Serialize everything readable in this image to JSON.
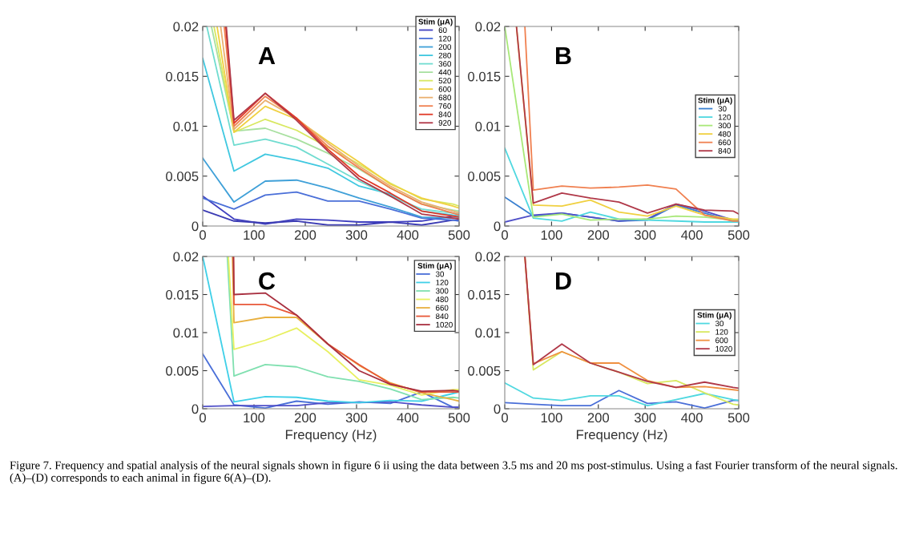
{
  "chart_data": [
    {
      "type": "line",
      "xlim": [
        0,
        500
      ],
      "xticks": [
        0,
        100,
        200,
        300,
        400,
        500
      ],
      "ylim": [
        0,
        0.02
      ],
      "yticks": [
        0,
        0.005,
        0.01,
        0.015,
        0.02
      ],
      "grid": false,
      "legend": "top right",
      "legend_title": "Stim (μA)",
      "annotations": [
        "A"
      ],
      "x": [
        0,
        61,
        122,
        183,
        244,
        305,
        366,
        427,
        488,
        500
      ],
      "series": [
        {
          "name": "60",
          "color": "#4040c0",
          "values": [
            0.003,
            0.0007,
            0.0002,
            0.0007,
            0.0006,
            0.0004,
            0.0004,
            0.0005,
            0.001,
            0.001
          ]
        },
        {
          "color": "#3c3cb4",
          "values": [
            0.0016,
            0.0005,
            0.0003,
            0.0005,
            0.0001,
            0.0001,
            0.0004,
            0.0001,
            0.0006,
            0.0006
          ]
        },
        {
          "name": "120",
          "color": "#4a6fd8",
          "values": [
            0.0028,
            0.0017,
            0.0031,
            0.0034,
            0.0025,
            0.0025,
            0.0017,
            0.0008,
            0.0006,
            0.0005
          ]
        },
        {
          "name": "200",
          "color": "#3fa0d8",
          "values": [
            0.0068,
            0.0024,
            0.0045,
            0.0046,
            0.0038,
            0.0028,
            0.0019,
            0.0009,
            0.0008,
            0.0008
          ]
        },
        {
          "name": "280",
          "color": "#40c8e0",
          "values": [
            0.0168,
            0.0055,
            0.0072,
            0.0066,
            0.0058,
            0.004,
            0.0032,
            0.0015,
            0.0011,
            0.001
          ]
        },
        {
          "name": "360",
          "color": "#70dcd0",
          "x": [
            8,
            61,
            122,
            183,
            244,
            305,
            366,
            427,
            488,
            500
          ],
          "values": [
            0.02,
            0.0081,
            0.0087,
            0.0079,
            0.0062,
            0.0045,
            0.003,
            0.0017,
            0.0013,
            0.0012
          ]
        },
        {
          "name": "440",
          "color": "#a8e0a0",
          "x": [
            17,
            61,
            122,
            183,
            244,
            305,
            366,
            427,
            488,
            500
          ],
          "values": [
            0.02,
            0.0095,
            0.0098,
            0.0087,
            0.0073,
            0.0057,
            0.0038,
            0.0022,
            0.0016,
            0.0015
          ]
        },
        {
          "name": "520",
          "color": "#d8e860",
          "x": [
            22,
            61,
            122,
            183,
            244,
            305,
            366,
            427,
            488,
            500
          ],
          "values": [
            0.02,
            0.0094,
            0.0107,
            0.0096,
            0.0079,
            0.0062,
            0.0043,
            0.0027,
            0.0022,
            0.002
          ]
        },
        {
          "name": "600",
          "color": "#f0d040",
          "x": [
            28,
            61,
            122,
            183,
            244,
            305,
            366,
            427,
            488,
            500
          ],
          "values": [
            0.02,
            0.0094,
            0.012,
            0.0107,
            0.0085,
            0.0064,
            0.0042,
            0.0028,
            0.002,
            0.0018
          ]
        },
        {
          "name": "680",
          "color": "#eab070",
          "x": [
            35,
            61,
            122,
            183,
            244,
            305,
            366,
            427,
            488,
            500
          ],
          "values": [
            0.02,
            0.0097,
            0.0126,
            0.0108,
            0.0083,
            0.006,
            0.004,
            0.0024,
            0.0015,
            0.0013
          ]
        },
        {
          "name": "760",
          "color": "#f08050",
          "x": [
            42,
            61,
            122,
            183,
            244,
            305,
            366,
            427,
            488,
            500
          ],
          "values": [
            0.02,
            0.01,
            0.013,
            0.0108,
            0.008,
            0.0058,
            0.0038,
            0.0022,
            0.0013,
            0.0011
          ]
        },
        {
          "name": "840",
          "color": "#e03a28",
          "x": [
            45,
            61,
            122,
            183,
            244,
            305,
            366,
            427,
            488,
            500
          ],
          "values": [
            0.02,
            0.0103,
            0.0133,
            0.0108,
            0.0077,
            0.005,
            0.0033,
            0.0015,
            0.001,
            0.0009
          ]
        },
        {
          "name": "920",
          "color": "#b03848",
          "x": [
            46,
            61,
            122,
            183,
            244,
            305,
            366,
            427,
            488,
            500
          ],
          "values": [
            0.02,
            0.0106,
            0.0133,
            0.0106,
            0.0075,
            0.0047,
            0.003,
            0.0012,
            0.0008,
            0.0007
          ]
        }
      ]
    },
    {
      "type": "line",
      "xlim": [
        0,
        500
      ],
      "xticks": [
        0,
        100,
        200,
        300,
        400,
        500
      ],
      "ylim": [
        0,
        0.02
      ],
      "yticks": [
        0,
        0.005,
        0.01,
        0.015,
        0.02
      ],
      "grid": false,
      "legend": "right",
      "legend_title": "Stim (μA)",
      "annotations": [
        "B"
      ],
      "x": [
        0,
        61,
        122,
        183,
        244,
        305,
        366,
        427,
        488,
        500
      ],
      "series": [
        {
          "name": "30",
          "color": "#3a80d0",
          "values": [
            0.0029,
            0.001,
            0.0013,
            0.0009,
            0.0005,
            0.0006,
            0.0021,
            0.0013,
            0.0005,
            0.0005
          ]
        },
        {
          "color": "#5050c8",
          "values": [
            0.0004,
            0.0011,
            0.0013,
            0.0009,
            0.0005,
            0.0007,
            0.0022,
            0.0015,
            0.0006,
            0.0006
          ]
        },
        {
          "name": "120",
          "color": "#50d8e0",
          "values": [
            0.0078,
            0.0008,
            0.0005,
            0.0014,
            0.0007,
            0.0006,
            0.0005,
            0.0004,
            0.0004,
            0.0004
          ]
        },
        {
          "name": "300",
          "color": "#a8e878",
          "values": [
            0.02,
            0.0009,
            0.0012,
            0.0006,
            0.0007,
            0.0007,
            0.001,
            0.0009,
            0.0006,
            0.0006
          ]
        },
        {
          "name": "480",
          "color": "#f0d040",
          "x": [
            25,
            61,
            122,
            183,
            244,
            305,
            366,
            427,
            488,
            500
          ],
          "values": [
            0.02,
            0.0021,
            0.002,
            0.0026,
            0.0014,
            0.001,
            0.002,
            0.0011,
            0.0007,
            0.0007
          ]
        },
        {
          "name": "660",
          "color": "#f08050",
          "x": [
            43,
            61,
            122,
            183,
            244,
            305,
            366,
            427,
            488,
            500
          ],
          "values": [
            0.02,
            0.0036,
            0.004,
            0.0038,
            0.0039,
            0.0041,
            0.0037,
            0.0011,
            0.0005,
            0.0005
          ]
        },
        {
          "name": "840",
          "color": "#b03848",
          "x": [
            25,
            61,
            122,
            183,
            244,
            305,
            366,
            427,
            488,
            500
          ],
          "values": [
            0.02,
            0.0023,
            0.0033,
            0.0028,
            0.0024,
            0.0013,
            0.0022,
            0.0016,
            0.0015,
            0.0012
          ]
        }
      ]
    },
    {
      "type": "line",
      "xlim": [
        0,
        500
      ],
      "xticks": [
        0,
        100,
        200,
        300,
        400,
        500
      ],
      "ylim": [
        0,
        0.02
      ],
      "yticks": [
        0,
        0.005,
        0.01,
        0.015,
        0.02
      ],
      "grid": false,
      "legend": "top right",
      "legend_title": "Stim (μA)",
      "xlabel": "Frequency (Hz)",
      "annotations": [
        "C"
      ],
      "x": [
        0,
        61,
        122,
        183,
        244,
        305,
        366,
        427,
        488,
        500
      ],
      "series": [
        {
          "name": "30",
          "color": "#4a6fd8",
          "values": [
            0.0072,
            0.0005,
            0.0001,
            0.001,
            0.0006,
            0.0009,
            0.0007,
            0.0022,
            0.0002,
            0.0002
          ]
        },
        {
          "color": "#5050c8",
          "values": [
            0.0003,
            0.0004,
            0.0004,
            0.0004,
            0.0008,
            0.0008,
            0.0009,
            0.0005,
            0.0002,
            0.0002
          ]
        },
        {
          "name": "120",
          "color": "#40d0e8",
          "values": [
            0.02,
            0.0009,
            0.0016,
            0.0015,
            0.001,
            0.0008,
            0.0011,
            0.001,
            0.002,
            0.0022
          ]
        },
        {
          "name": "300",
          "color": "#80e0b0",
          "x": [
            48,
            61,
            122,
            183,
            244,
            305,
            366,
            427,
            488,
            500
          ],
          "values": [
            0.02,
            0.0043,
            0.0058,
            0.0055,
            0.0042,
            0.0036,
            0.0026,
            0.0012,
            0.0015,
            0.0014
          ]
        },
        {
          "name": "480",
          "color": "#e8f060",
          "x": [
            50,
            61,
            122,
            183,
            244,
            305,
            366,
            427,
            488,
            500
          ],
          "values": [
            0.02,
            0.0078,
            0.009,
            0.0106,
            0.0075,
            0.0038,
            0.0031,
            0.0018,
            0.0025,
            0.0025
          ]
        },
        {
          "name": "660",
          "color": "#e8b040",
          "x": [
            58,
            61,
            122,
            183,
            244,
            305,
            366,
            427,
            488,
            500
          ],
          "values": [
            0.02,
            0.0113,
            0.012,
            0.012,
            0.0085,
            0.0057,
            0.0034,
            0.0021,
            0.0012,
            0.001
          ]
        },
        {
          "name": "840",
          "color": "#e85838",
          "x": [
            60,
            61,
            122,
            183,
            244,
            305,
            366,
            427,
            488,
            500
          ],
          "values": [
            0.02,
            0.0137,
            0.0137,
            0.0123,
            0.0085,
            0.0058,
            0.0033,
            0.0022,
            0.0022,
            0.0022
          ]
        },
        {
          "name": "1020",
          "color": "#a83040",
          "x": [
            60,
            61,
            122,
            183,
            244,
            305,
            366,
            427,
            488,
            500
          ],
          "values": [
            0.02,
            0.015,
            0.0152,
            0.0123,
            0.0085,
            0.005,
            0.0032,
            0.0023,
            0.0024,
            0.0023
          ]
        }
      ]
    },
    {
      "type": "line",
      "xlim": [
        0,
        500
      ],
      "xticks": [
        0,
        100,
        200,
        300,
        400,
        500
      ],
      "ylim": [
        0,
        0.02
      ],
      "yticks": [
        0,
        0.005,
        0.01,
        0.015,
        0.02
      ],
      "grid": false,
      "legend": "right",
      "legend_title": "Stim (μA)",
      "xlabel": "Frequency (Hz)",
      "annotations": [
        "D",
        "Figure 7. Frequency and spatial analysis of the neural signals shown in figure 6 ii using the data between 3.5 ms and 20 ms post-stimulus. Using a fast Fourier transform of the neural signals. (A)–(D) corresponds to each animal in figure 6(A)–(D)."
      ],
      "x": [
        0,
        61,
        122,
        183,
        244,
        305,
        366,
        427,
        488,
        500
      ],
      "series": [
        {
          "color": "#4a6fd8",
          "values": [
            0.0008,
            0.0006,
            0.0004,
            0.0004,
            0.0024,
            0.0007,
            0.0009,
            0.0001,
            0.0011,
            0.0011
          ]
        },
        {
          "name": "30",
          "color": "#50d8e0",
          "values": [
            0.0034,
            0.0014,
            0.0011,
            0.0017,
            0.0017,
            0.0004,
            0.0012,
            0.002,
            0.0012,
            0.0011
          ]
        },
        {
          "name": "120",
          "color": "#d8e860",
          "x": [
            43,
            61,
            122,
            183,
            244,
            305,
            366,
            427,
            488,
            500
          ],
          "values": [
            0.02,
            0.0051,
            0.0075,
            0.006,
            0.0048,
            0.0033,
            0.0037,
            0.0021,
            0.0006,
            0.0005
          ]
        },
        {
          "name": "600",
          "color": "#f09040",
          "x": [
            43,
            61,
            122,
            183,
            244,
            305,
            366,
            427,
            488,
            500
          ],
          "values": [
            0.02,
            0.0059,
            0.0075,
            0.006,
            0.006,
            0.0037,
            0.0028,
            0.0029,
            0.0025,
            0.0024
          ]
        },
        {
          "name": "1020",
          "color": "#b03848",
          "x": [
            43,
            61,
            122,
            183,
            244,
            305,
            366,
            427,
            488,
            500
          ],
          "values": [
            0.02,
            0.0058,
            0.0085,
            0.006,
            0.0048,
            0.0036,
            0.0028,
            0.0035,
            0.0028,
            0.0027
          ]
        }
      ]
    }
  ]
}
